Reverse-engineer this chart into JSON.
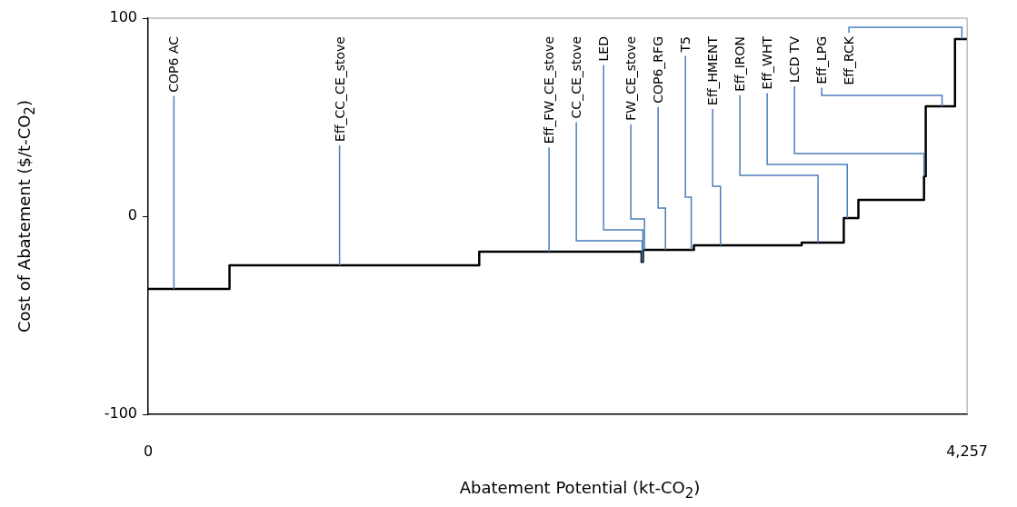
{
  "chart_data": {
    "type": "step",
    "xlabel": "Abatement Potential (kt-CO$_{2}$)",
    "ylabel": "Cost of Abatement ($/t-CO$_{2}$)",
    "x": [
      0,
      423,
      1721,
      2565,
      2572,
      2837,
      3397,
      3616,
      3692,
      4033,
      4042,
      4194,
      4257
    ],
    "series": [
      {
        "color": "#000000",
        "values": [
          -36.7,
          -24.8,
          -17.9,
          -23,
          -17.0,
          -14.7,
          -13.3,
          -0.9,
          8.3,
          20.2,
          55.5,
          89.4,
          89.4
        ]
      }
    ],
    "xlim": [
      0,
      4257
    ],
    "xticks": [
      0,
      {
        "value": 4257,
        "label": "4,257"
      }
    ],
    "ylim": [
      -100,
      100
    ],
    "yticks": [
      -100,
      0,
      100
    ],
    "grid": false,
    "legend": false,
    "annotations": [
      {
        "text": "COP6 AC",
        "x": 134,
        "y": -36.7
      },
      {
        "text": "Eff_CC_CE_stove",
        "x": 995,
        "y": -24.8
      },
      {
        "text": "Eff_FW_CE_stove",
        "x": 2084,
        "y": -17.9
      },
      {
        "text": "CC_CE_stove",
        "x": 2568,
        "y": -23
      },
      {
        "text": "LED",
        "x": 2572,
        "y": -17.0
      },
      {
        "text": "FW_CE_stove",
        "x": 2580,
        "y": -17.0
      },
      {
        "text": "COP6_RFG",
        "x": 2689,
        "y": -17.0
      },
      {
        "text": "T5",
        "x": 2823,
        "y": -17.0
      },
      {
        "text": "Eff_HMENT",
        "x": 2975,
        "y": -14.7
      },
      {
        "text": "Eff_IRON",
        "x": 3482,
        "y": -13.3
      },
      {
        "text": "Eff_WHT",
        "x": 3634,
        "y": -0.9
      },
      {
        "text": "LCD TV",
        "x": 4033,
        "y": 20.2
      },
      {
        "text": "Eff_LPG",
        "x": 4127,
        "y": 55.5
      },
      {
        "text": "Eff_RCK",
        "x": 4230,
        "y": 89.4
      }
    ]
  }
}
